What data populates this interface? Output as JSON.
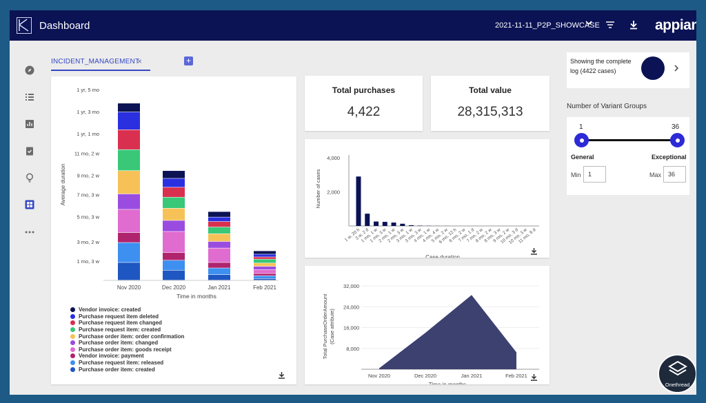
{
  "header": {
    "title": "Dashboard",
    "dataset": "2021-11-11_P2P_SHOWCASE",
    "brand": "appian"
  },
  "tab": {
    "label": "INCIDENT_MANAGEMENT",
    "close": "×",
    "add": "+"
  },
  "kpis": {
    "total_purchases": {
      "title": "Total purchases",
      "value": "4,422"
    },
    "total_value": {
      "title": "Total value",
      "value": "28,315,313"
    }
  },
  "log_info": {
    "text": "Showing the complete log (4422 cases)",
    "progress": 1.0
  },
  "variants": {
    "title": "Number of Variant Groups",
    "min_value": "1",
    "max_value": "36",
    "left_label": "General",
    "right_label": "Exceptional",
    "min_label": "Min",
    "max_label": "Max",
    "min_input": "1",
    "max_input": "36",
    "range": [
      1,
      36
    ],
    "selected": [
      1,
      36
    ]
  },
  "watermark": {
    "label": "Onethread"
  },
  "colors": {
    "header_bg": "#0b1354",
    "accent": "#3346c2",
    "area_fill": "#3d4170",
    "duration_bar": "#0b1354"
  },
  "chart_data": [
    {
      "type": "bar",
      "subtype": "stacked",
      "xlabel": "Time in months",
      "ylabel": "Average duration",
      "categories": [
        "Nov 2020",
        "Dec 2020",
        "Jan 2021",
        "Feb 2021"
      ],
      "y_ticks": [
        {
          "label": "1 mo, 3 w",
          "value": 1.75
        },
        {
          "label": "3 mo, 2 w",
          "value": 3.5
        },
        {
          "label": "5 mo, 3 w",
          "value": 5.75
        },
        {
          "label": "7 mo, 3 w",
          "value": 7.75
        },
        {
          "label": "9 mo, 2 w",
          "value": 9.5
        },
        {
          "label": "11 mo, 2 w",
          "value": 11.5
        },
        {
          "label": "1 yr, 1 mo",
          "value": 13.25
        },
        {
          "label": "1 yr, 3 mo",
          "value": 15.25
        },
        {
          "label": "1 yr, 5 mo",
          "value": 17.25
        }
      ],
      "ylim": [
        0,
        17.25
      ],
      "series": [
        {
          "name": "Purchase order item: created",
          "color": "#1e56c2",
          "values": [
            1.6,
            0.9,
            0.5,
            0.15
          ]
        },
        {
          "name": "Purchase request item: released",
          "color": "#3d8ff0",
          "values": [
            1.8,
            0.9,
            0.6,
            0.25
          ]
        },
        {
          "name": "Vendor invoice: payment",
          "color": "#b0246e",
          "values": [
            0.9,
            0.7,
            0.5,
            0.2
          ]
        },
        {
          "name": "Purchase order item: goods receipt",
          "color": "#e06ccf",
          "values": [
            2.1,
            1.9,
            1.3,
            0.35
          ]
        },
        {
          "name": "Purchase order item: changed",
          "color": "#9a4ce0",
          "values": [
            1.4,
            1.0,
            0.6,
            0.3
          ]
        },
        {
          "name": "Purchase order item: order confirmation",
          "color": "#f6c257",
          "values": [
            2.1,
            1.1,
            0.7,
            0.3
          ]
        },
        {
          "name": "Purchase request item: created",
          "color": "#38c878",
          "values": [
            1.9,
            1.0,
            0.6,
            0.35
          ]
        },
        {
          "name": "Purchase request item changed",
          "color": "#d9304f",
          "values": [
            1.8,
            0.9,
            0.5,
            0.2
          ]
        },
        {
          "name": "Purchase request item deleted",
          "color": "#2a2fe0",
          "values": [
            1.6,
            0.8,
            0.4,
            0.25
          ]
        },
        {
          "name": "Vendor invoice: created",
          "color": "#0b1354",
          "values": [
            0.8,
            0.7,
            0.5,
            0.3
          ]
        }
      ]
    },
    {
      "type": "bar",
      "xlabel": "Case duration",
      "ylabel": "Number of cases",
      "y_ticks": [
        2000,
        4000
      ],
      "ylim": [
        0,
        4000
      ],
      "categories": [
        "1 w, 20 h",
        "3 w, 2 d",
        "1 mo, 1 w",
        "1 mo, 3 w",
        "2 mo, 1 w",
        "2 mo, 3 w",
        "3 mo, 1 w",
        "3 mo, 3 w",
        "4 mo, 1 w",
        "4 mo, 4 w",
        "5 mo, 2 w",
        "6 mo, 12 h",
        "6 mo, 2 w",
        "7 mo, 1 d",
        "7 mo, 2 w",
        "8 mo, 2 w",
        "8 mo, 3 w",
        "9 mo, 2 w",
        "10 mo, 3 d",
        "10 mo, 3 w",
        "11 mo, 6 d"
      ],
      "values": [
        2900,
        720,
        260,
        240,
        200,
        130,
        45,
        20,
        10,
        5,
        5,
        0,
        0,
        0,
        0,
        0,
        0,
        0,
        0,
        0,
        0
      ]
    },
    {
      "type": "area",
      "xlabel": "Time in months",
      "ylabel": "Total PurchaseOrderAmount (Case attribute)",
      "categories": [
        "Nov 2020",
        "Dec 2020",
        "Jan 2021",
        "Feb 2021"
      ],
      "y_ticks": [
        8000,
        16000,
        24000,
        32000
      ],
      "ylim": [
        0,
        32000
      ],
      "values": [
        400,
        14000,
        28500,
        6500
      ]
    }
  ]
}
